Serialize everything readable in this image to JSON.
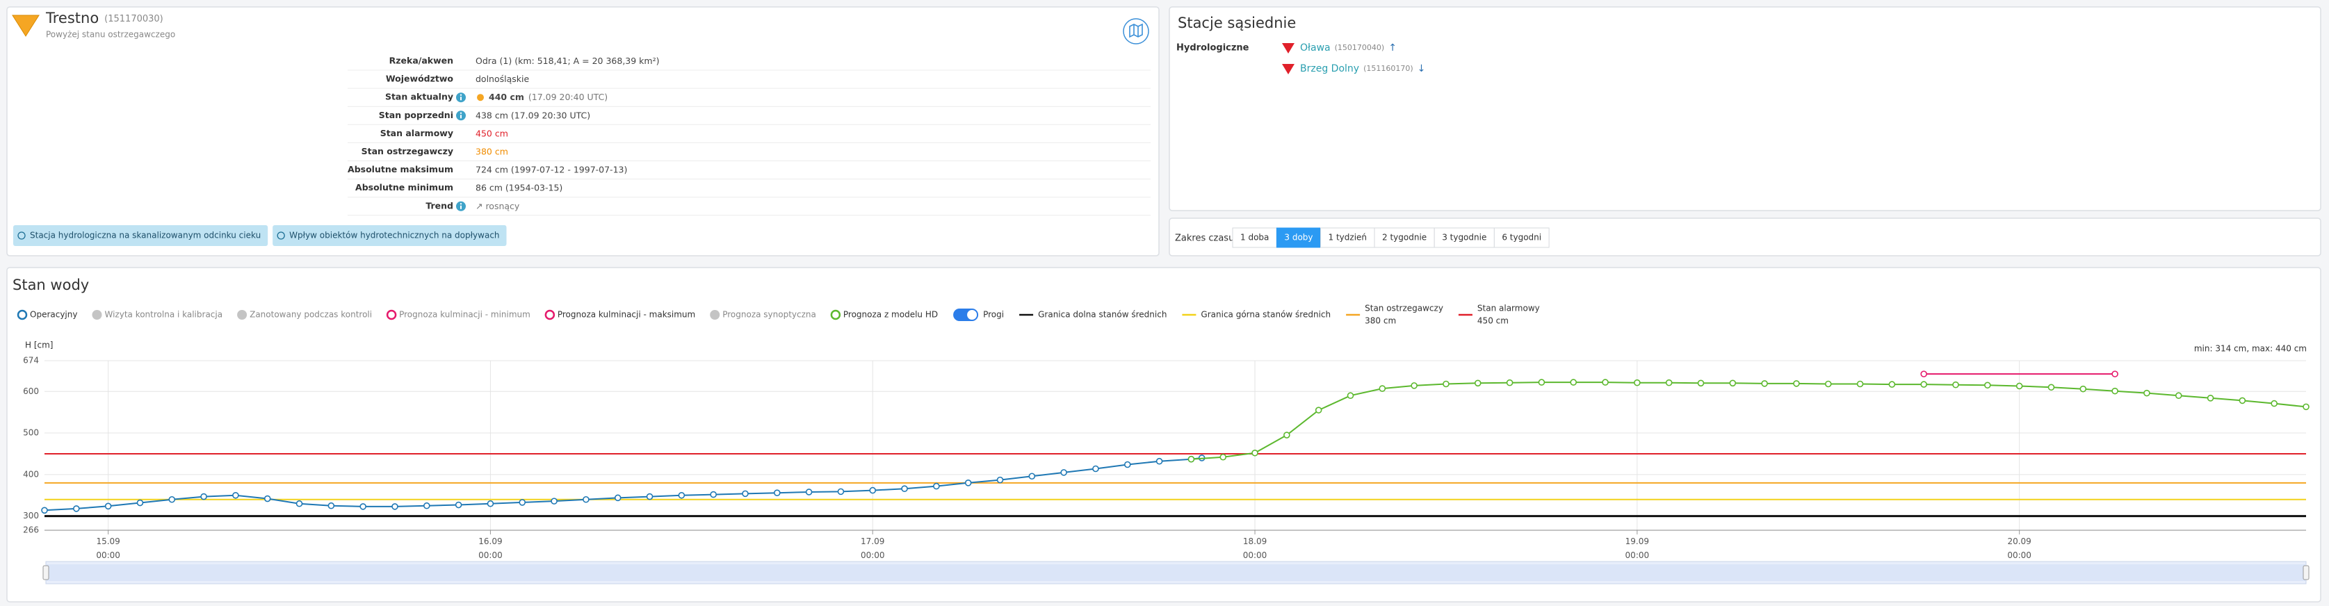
{
  "station": {
    "name": "Trestno",
    "code": "(151170030)",
    "status": "Powyżej stanu ostrzegawczego",
    "rows": [
      {
        "label": "Rzeka/akwen",
        "value": "Odra (1) (km: 518,41; A = 20 368,39 km²)"
      },
      {
        "label": "Województwo",
        "value": "dolnośląskie"
      },
      {
        "label": "Stan aktualny",
        "info": true,
        "dot_color": "#f5a623",
        "bold": true,
        "value": "440 cm",
        "note": "(17.09 20:40 UTC)"
      },
      {
        "label": "Stan poprzedni",
        "info": true,
        "value": "438 cm (17.09 20:30 UTC)"
      },
      {
        "label": "Stan alarmowy",
        "value": "450 cm",
        "color": "#e0202a"
      },
      {
        "label": "Stan ostrzegawczy",
        "value": "380 cm",
        "color": "#f08c00"
      },
      {
        "label": "Absolutne maksimum",
        "value": "724 cm (1997-07-12 - 1997-07-13)"
      },
      {
        "label": "Absolutne minimum",
        "value": "86 cm (1954-03-15)"
      },
      {
        "label": "Trend",
        "info": true,
        "value": "↗ rosnący",
        "color": "#777"
      }
    ],
    "badges": [
      "Stacja hydrologiczna na skanalizowanym odcinku cieku",
      "Wpływ obiektów hydrotechnicznych na dopływach"
    ]
  },
  "neighbors": {
    "title": "Stacje sąsiednie",
    "group": "Hydrologiczne",
    "stations": [
      {
        "name": "Oława",
        "code": "(150170040)",
        "arrow": "↑"
      },
      {
        "name": "Brzeg Dolny",
        "code": "(151160170)",
        "arrow": "↓"
      }
    ]
  },
  "range": {
    "label": "Zakres czasu:",
    "options": [
      "1 doba",
      "3 doby",
      "1 tydzień",
      "2 tygodnie",
      "3 tygodnie",
      "6 tygodni"
    ],
    "active": 1
  },
  "chart_data": {
    "type": "line",
    "title": "Stan wody",
    "y_label": "H [cm]",
    "summary": "min: 314 cm, max: 440 cm",
    "ylim": [
      266,
      674
    ],
    "yticks": [
      266,
      300,
      400,
      500,
      600,
      674
    ],
    "xlim": [
      "14.09 20:00",
      "20.09 18:00"
    ],
    "xticks": [
      "15.09 00:00",
      "16.09 00:00",
      "17.09 00:00",
      "18.09 00:00",
      "19.09 00:00",
      "20.09 00:00"
    ],
    "grid": true,
    "series": [
      {
        "name": "Operacyjny",
        "color": "#1f78b4",
        "marker": "ring",
        "x": [
          "14.09 20:00",
          "14.09 22:00",
          "15.09 00:00",
          "15.09 02:00",
          "15.09 04:00",
          "15.09 06:00",
          "15.09 08:00",
          "15.09 10:00",
          "15.09 12:00",
          "15.09 14:00",
          "15.09 16:00",
          "15.09 18:00",
          "15.09 20:00",
          "15.09 22:00",
          "16.09 00:00",
          "16.09 02:00",
          "16.09 04:00",
          "16.09 06:00",
          "16.09 08:00",
          "16.09 10:00",
          "16.09 12:00",
          "16.09 14:00",
          "16.09 16:00",
          "16.09 18:00",
          "16.09 20:00",
          "16.09 22:00",
          "17.09 00:00",
          "17.09 02:00",
          "17.09 04:00",
          "17.09 06:00",
          "17.09 08:00",
          "17.09 10:00",
          "17.09 12:00",
          "17.09 14:00",
          "17.09 16:00",
          "17.09 18:00",
          "17.09 20:00",
          "17.09 20:40"
        ],
        "values": [
          314,
          318,
          324,
          332,
          340,
          347,
          350,
          342,
          330,
          325,
          323,
          323,
          325,
          327,
          330,
          333,
          336,
          340,
          344,
          347,
          350,
          352,
          354,
          356,
          358,
          359,
          362,
          366,
          372,
          380,
          387,
          396,
          405,
          414,
          424,
          432,
          437,
          440
        ]
      },
      {
        "name": "Wizyta kontrolna i kalibracja",
        "color": "#c4c4c4",
        "marker": "dot"
      },
      {
        "name": "Zanotowany podczas kontroli",
        "color": "#c4c4c4",
        "marker": "dot"
      },
      {
        "name": "Prognoza kulminacji - minimum",
        "color": "#e5196b",
        "marker": "ring"
      },
      {
        "name": "Prognoza kulminacji - maksimum",
        "color": "#e5196b",
        "marker": "ring",
        "x": [
          "19.09 18:00",
          "20.09 06:00"
        ],
        "values": [
          642,
          642
        ]
      },
      {
        "name": "Prognoza synoptyczna",
        "color": "#c4c4c4",
        "marker": "dot"
      },
      {
        "name": "Prognoza z modelu HD",
        "color": "#5cb82e",
        "marker": "ring",
        "x": [
          "17.09 20:00",
          "17.09 22:00",
          "18.09 00:00",
          "18.09 02:00",
          "18.09 04:00",
          "18.09 06:00",
          "18.09 08:00",
          "18.09 10:00",
          "18.09 12:00",
          "18.09 14:00",
          "18.09 16:00",
          "18.09 18:00",
          "18.09 20:00",
          "18.09 22:00",
          "19.09 00:00",
          "19.09 02:00",
          "19.09 04:00",
          "19.09 06:00",
          "19.09 08:00",
          "19.09 10:00",
          "19.09 12:00",
          "19.09 14:00",
          "19.09 16:00",
          "19.09 18:00",
          "19.09 20:00",
          "19.09 22:00",
          "20.09 00:00",
          "20.09 02:00",
          "20.09 04:00",
          "20.09 06:00",
          "20.09 08:00",
          "20.09 10:00",
          "20.09 12:00",
          "20.09 14:00",
          "20.09 16:00",
          "20.09 18:00"
        ],
        "values": [
          437,
          442,
          452,
          495,
          555,
          590,
          607,
          614,
          618,
          620,
          621,
          622,
          622,
          622,
          621,
          621,
          620,
          620,
          619,
          619,
          618,
          618,
          617,
          617,
          616,
          615,
          613,
          610,
          606,
          601,
          596,
          590,
          584,
          578,
          571,
          563
        ]
      }
    ],
    "thresholds_label": "Progi",
    "thresholds_on": true,
    "thresholds": [
      {
        "name": "Granica dolna stanów średnich",
        "color": "#111111",
        "value": 300
      },
      {
        "name": "Granica górna stanów średnich",
        "color": "#f2d21a",
        "value": 340
      },
      {
        "name": "Stan ostrzegawczy",
        "value_label": "380 cm",
        "color": "#f5a623",
        "value": 380
      },
      {
        "name": "Stan alarmowy",
        "value_label": "450 cm",
        "color": "#e0202a",
        "value": 450
      }
    ]
  }
}
